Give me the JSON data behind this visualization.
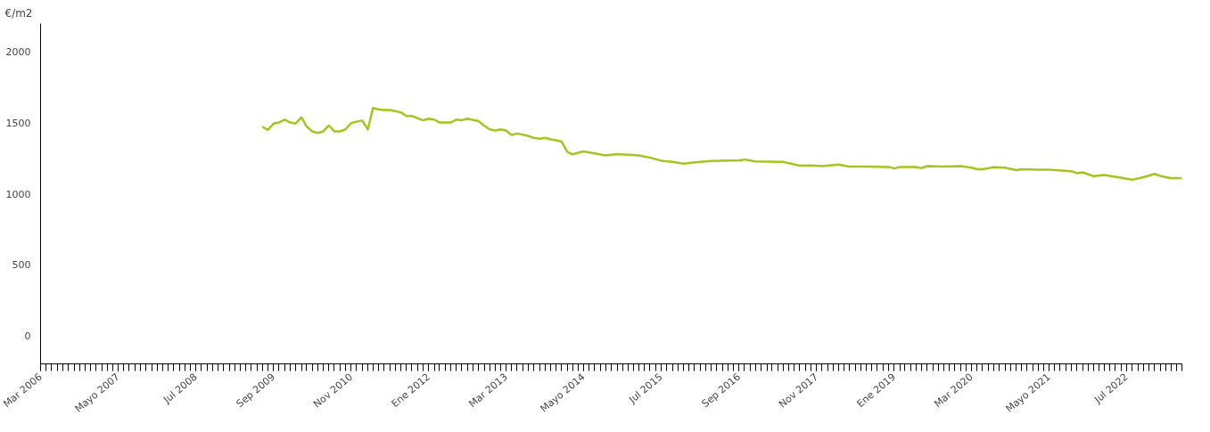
{
  "chart_data": {
    "type": "line",
    "ylabel": "€/m2",
    "x": [
      "2009-07",
      "2009-08",
      "2009-09",
      "2009-10",
      "2009-11",
      "2009-12",
      "2010-01",
      "2010-02",
      "2010-03",
      "2010-04",
      "2010-05",
      "2010-06",
      "2010-07",
      "2010-08",
      "2010-09",
      "2010-10",
      "2010-11",
      "2010-12",
      "2011-01",
      "2011-02",
      "2011-03",
      "2011-04",
      "2011-05",
      "2011-06",
      "2011-08",
      "2011-09",
      "2011-10",
      "2011-12",
      "2012-01",
      "2012-02",
      "2012-03",
      "2012-05",
      "2012-06",
      "2012-07",
      "2012-08",
      "2012-10",
      "2012-11",
      "2012-12",
      "2013-01",
      "2013-02",
      "2013-03",
      "2013-04",
      "2013-05",
      "2013-07",
      "2013-08",
      "2013-09",
      "2013-10",
      "2013-11",
      "2013-12",
      "2014-01",
      "2014-02",
      "2014-03",
      "2014-05",
      "2014-07",
      "2014-09",
      "2014-11",
      "2015-03",
      "2015-05",
      "2015-07",
      "2015-09",
      "2015-11",
      "2016-01",
      "2016-04",
      "2016-09",
      "2016-10",
      "2016-12",
      "2017-05",
      "2017-08",
      "2017-10",
      "2017-12",
      "2018-03",
      "2018-05",
      "2018-08",
      "2018-12",
      "2019-01",
      "2019-02",
      "2019-05",
      "2019-06",
      "2019-07",
      "2019-10",
      "2020-01",
      "2020-03",
      "2020-04",
      "2020-05",
      "2020-07",
      "2020-09",
      "2020-11",
      "2020-12",
      "2021-03",
      "2021-05",
      "2021-09",
      "2021-10",
      "2021-11",
      "2022-01",
      "2022-03",
      "2022-05",
      "2022-08",
      "2022-10",
      "2022-12",
      "2023-01",
      "2023-03",
      "2023-05"
    ],
    "series": [
      {
        "color": "#a4c520",
        "values": [
          1473,
          1450,
          1495,
          1502,
          1523,
          1502,
          1495,
          1539,
          1475,
          1440,
          1429,
          1440,
          1481,
          1440,
          1440,
          1454,
          1498,
          1508,
          1516,
          1454,
          1605,
          1595,
          1591,
          1591,
          1574,
          1548,
          1548,
          1518,
          1529,
          1523,
          1502,
          1502,
          1523,
          1518,
          1529,
          1512,
          1481,
          1454,
          1446,
          1454,
          1446,
          1414,
          1425,
          1408,
          1394,
          1388,
          1394,
          1383,
          1377,
          1367,
          1294,
          1278,
          1298,
          1284,
          1270,
          1280,
          1270,
          1255,
          1233,
          1225,
          1212,
          1222,
          1231,
          1236,
          1241,
          1228,
          1225,
          1198,
          1200,
          1195,
          1206,
          1192,
          1192,
          1189,
          1178,
          1189,
          1189,
          1181,
          1195,
          1192,
          1195,
          1184,
          1173,
          1173,
          1187,
          1184,
          1167,
          1173,
          1170,
          1170,
          1159,
          1145,
          1151,
          1124,
          1132,
          1120,
          1099,
          1116,
          1140,
          1126,
          1110,
          1110
        ]
      }
    ],
    "xlim": [
      "2006-03",
      "2023-05"
    ],
    "xticks": [
      {
        "value": "2006-03",
        "label": "Mar 2006"
      },
      {
        "value": "2007-05",
        "label": "Mayo 2007"
      },
      {
        "value": "2008-07",
        "label": "Jul 2008"
      },
      {
        "value": "2009-09",
        "label": "Sep 2009"
      },
      {
        "value": "2010-11",
        "label": "Nov 2010"
      },
      {
        "value": "2012-01",
        "label": "Ene 2012"
      },
      {
        "value": "2013-03",
        "label": "Mar 2013"
      },
      {
        "value": "2014-05",
        "label": "Mayo 2014"
      },
      {
        "value": "2015-07",
        "label": "Jul 2015"
      },
      {
        "value": "2016-09",
        "label": "Sep 2016"
      },
      {
        "value": "2017-11",
        "label": "Nov 2017"
      },
      {
        "value": "2019-01",
        "label": "Ene 2019"
      },
      {
        "value": "2020-03",
        "label": "Mar 2020"
      },
      {
        "value": "2021-05",
        "label": "Mayo 2021"
      },
      {
        "value": "2022-07",
        "label": "Jul 2022"
      }
    ],
    "ylim": [
      -200,
      2200
    ],
    "yticks": [
      0,
      500,
      1000,
      1500,
      2000
    ],
    "line_style": "solid"
  }
}
